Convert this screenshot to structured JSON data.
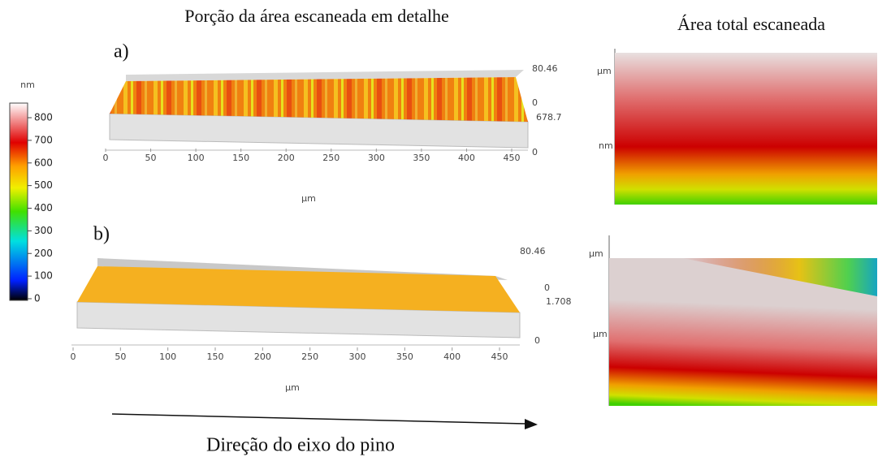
{
  "header": {
    "left_title": "Porção da área escaneada em detalhe",
    "right_title": "Área total escaneada"
  },
  "colorbar": {
    "unit": "nm",
    "ticks": [
      0,
      100,
      200,
      300,
      400,
      500,
      600,
      700,
      800
    ]
  },
  "panels": [
    {
      "label": "a)",
      "x_ticks": [
        0,
        50,
        100,
        150,
        200,
        250,
        300,
        350,
        400,
        450
      ],
      "x_unit": "µm",
      "z_labels": [
        80.46,
        0,
        678.7,
        0
      ],
      "map_labels": [
        "µm",
        "nm"
      ]
    },
    {
      "label": "b)",
      "x_ticks": [
        0,
        50,
        100,
        150,
        200,
        250,
        300,
        350,
        400,
        450
      ],
      "x_unit": "µm",
      "z_labels": [
        80.46,
        0,
        1.708,
        0
      ],
      "map_labels": [
        "µm",
        "µm"
      ]
    }
  ],
  "footer": "Direção do eixo do pino"
}
